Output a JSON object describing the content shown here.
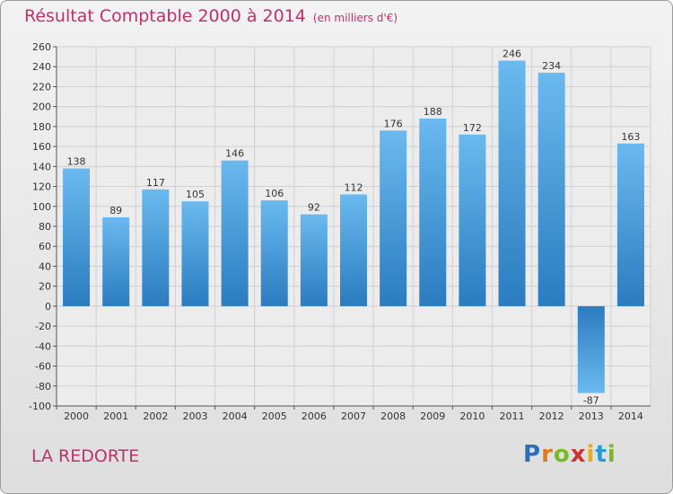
{
  "header": {
    "title": "Résultat Comptable 2000 à 2014",
    "subtitle": "(en milliers d'€)"
  },
  "footer": {
    "commune": "LA REDORTE",
    "logo_letters": [
      "P",
      "r",
      "o",
      "x",
      "i",
      "t",
      "i"
    ],
    "logo_colors": [
      "#2a6fb8",
      "#e07a1a",
      "#7ab82a",
      "#d03030",
      "#e0b020",
      "#2a9ad0",
      "#7ab82a"
    ]
  },
  "colors": {
    "bar_light": "#6ab9ef",
    "bar_dark": "#2b7cc0",
    "accent": "#c0306e"
  },
  "chart_data": {
    "type": "bar",
    "title": "Résultat Comptable 2000 à 2014",
    "subtitle": "(en milliers d'€)",
    "categories": [
      "2000",
      "2001",
      "2002",
      "2003",
      "2004",
      "2005",
      "2006",
      "2007",
      "2008",
      "2009",
      "2010",
      "2011",
      "2012",
      "2013",
      "2014"
    ],
    "values": [
      138,
      89,
      117,
      105,
      146,
      106,
      92,
      112,
      176,
      188,
      172,
      246,
      234,
      -87,
      163
    ],
    "ylim": [
      -100,
      260
    ],
    "yticks": [
      -100,
      -80,
      -60,
      -40,
      -20,
      0,
      20,
      40,
      60,
      80,
      100,
      120,
      140,
      160,
      180,
      200,
      220,
      240,
      260
    ],
    "grid": true,
    "legend": "none"
  }
}
